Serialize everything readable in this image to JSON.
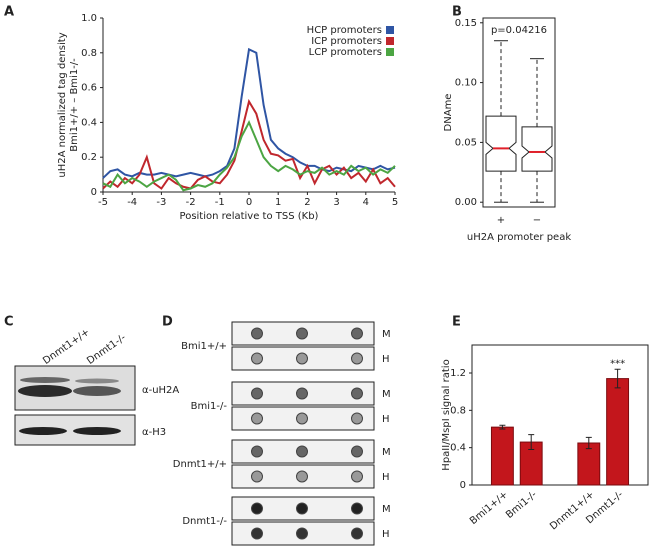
{
  "panel_labels": [
    "A",
    "B",
    "C",
    "D",
    "E"
  ],
  "chart_data": [
    {
      "type": "line",
      "xlabel": "Position relative to TSS (Kb)",
      "ylabel": [
        "uH2A normalized tag density",
        "Bmi1+/+ – Bmi1-/-"
      ],
      "x": [
        -5,
        -4.75,
        -4.5,
        -4.25,
        -4,
        -3.75,
        -3.5,
        -3.25,
        -3,
        -2.75,
        -2.5,
        -2.25,
        -2,
        -1.75,
        -1.5,
        -1.25,
        -1,
        -0.75,
        -0.5,
        -0.25,
        0,
        0.25,
        0.5,
        0.75,
        1,
        1.25,
        1.5,
        1.75,
        2,
        2.25,
        2.5,
        2.75,
        3,
        3.25,
        3.5,
        3.75,
        4,
        4.25,
        4.5,
        4.75,
        5
      ],
      "series": [
        {
          "name": "HCP promoters",
          "color": "#2f55a4",
          "values": [
            0.08,
            0.12,
            0.13,
            0.1,
            0.09,
            0.11,
            0.1,
            0.1,
            0.11,
            0.1,
            0.09,
            0.1,
            0.11,
            0.1,
            0.09,
            0.1,
            0.12,
            0.15,
            0.25,
            0.55,
            0.82,
            0.8,
            0.5,
            0.3,
            0.25,
            0.22,
            0.2,
            0.17,
            0.15,
            0.15,
            0.13,
            0.12,
            0.14,
            0.13,
            0.12,
            0.15,
            0.14,
            0.13,
            0.15,
            0.13,
            0.14
          ]
        },
        {
          "name": "ICP promoters",
          "color": "#c0272d",
          "values": [
            0.02,
            0.06,
            0.03,
            0.08,
            0.05,
            0.1,
            0.2,
            0.05,
            0.02,
            0.08,
            0.05,
            0.03,
            0.02,
            0.07,
            0.09,
            0.06,
            0.05,
            0.1,
            0.18,
            0.35,
            0.52,
            0.45,
            0.3,
            0.22,
            0.21,
            0.18,
            0.19,
            0.08,
            0.15,
            0.05,
            0.13,
            0.15,
            0.1,
            0.14,
            0.08,
            0.11,
            0.06,
            0.13,
            0.05,
            0.08,
            0.03
          ]
        },
        {
          "name": "LCP promoters",
          "color": "#4ca543",
          "values": [
            0.05,
            0.03,
            0.1,
            0.05,
            0.08,
            0.06,
            0.03,
            0.06,
            0.08,
            0.1,
            0.07,
            0.01,
            0.02,
            0.04,
            0.03,
            0.05,
            0.1,
            0.14,
            0.2,
            0.32,
            0.4,
            0.3,
            0.2,
            0.15,
            0.12,
            0.15,
            0.13,
            0.1,
            0.12,
            0.11,
            0.14,
            0.1,
            0.12,
            0.1,
            0.15,
            0.12,
            0.14,
            0.1,
            0.13,
            0.11,
            0.15
          ]
        }
      ],
      "xlim": [
        -5,
        5
      ],
      "xticks": [
        -5,
        -4,
        -3,
        -2,
        -1,
        0,
        1,
        2,
        3,
        4,
        5
      ],
      "ylim": [
        0,
        1
      ],
      "yticks": [
        0,
        0.2,
        0.4,
        0.6,
        0.8,
        {
          "value": 1,
          "label": "1.0"
        }
      ],
      "legend": "upper right"
    },
    {
      "type": "box",
      "xlabel": "uH2A promoter peak",
      "ylabel": "DNAme",
      "annotation": "p=0.04216",
      "categories": [
        "+",
        "−"
      ],
      "boxes": [
        {
          "whislo": 0,
          "q1": 0.026,
          "notch_lo": 0.04,
          "med": 0.045,
          "notch_hi": 0.05,
          "q3": 0.072,
          "whishi": 0.135
        },
        {
          "whislo": 0,
          "q1": 0.026,
          "notch_lo": 0.037,
          "med": 0.042,
          "notch_hi": 0.047,
          "q3": 0.063,
          "whishi": 0.12
        }
      ],
      "median_color": "#e0202a",
      "ylim": [
        -0.004,
        0.154
      ],
      "yticks": [
        {
          "value": 0,
          "label": "0.00"
        },
        {
          "value": 0.05,
          "label": "0.05"
        },
        {
          "value": 0.1,
          "label": "0.10"
        },
        {
          "value": 0.15,
          "label": "0.15"
        }
      ]
    },
    {
      "type": "bar",
      "ylabel": "HpaII/MspI signal ratio",
      "annotation": "***",
      "categories": [
        "Bmi1+/+",
        "Bmi1-/-",
        null,
        "Dnmt1+/+",
        "Dnmt1-/-"
      ],
      "values": [
        0.62,
        0.46,
        null,
        0.45,
        1.14
      ],
      "errors": [
        0.02,
        0.08,
        null,
        0.06,
        0.1
      ],
      "color": "#c3161c",
      "ylim": [
        0,
        1.5
      ],
      "yticks": [
        0,
        0.4,
        0.8,
        1.2
      ]
    }
  ],
  "blot_c": {
    "columns": [
      "Dnmt1+/+",
      "Dnmt1-/-"
    ],
    "rows": [
      "α-uH2A",
      "α-H3"
    ]
  },
  "blot_d": {
    "rows": [
      "Bmi1+/+",
      "Bmi1-/-",
      "Dnmt1+/+",
      "Dnmt1-/-"
    ],
    "lanes": [
      "M",
      "H"
    ]
  }
}
